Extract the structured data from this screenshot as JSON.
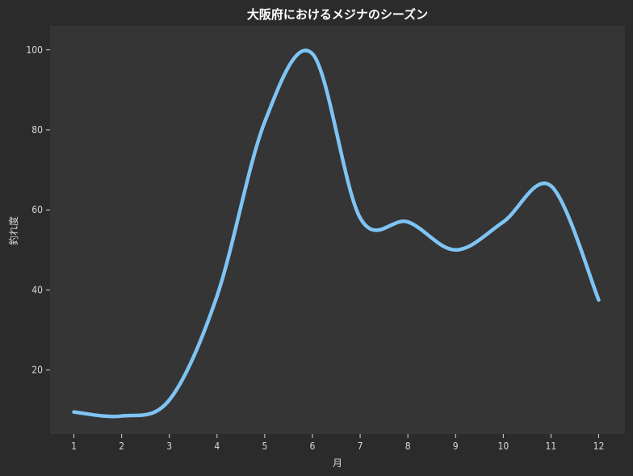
{
  "chart_data": {
    "type": "line",
    "title": "大阪府におけるメジナのシーズン",
    "xlabel": "月",
    "ylabel": "釣れ度",
    "x": [
      1,
      2,
      3,
      4,
      5,
      6,
      7,
      8,
      9,
      10,
      11,
      12
    ],
    "series": [
      {
        "values": [
          9.5,
          8.5,
          12.5,
          38.5,
          82,
          99,
          58,
          57,
          50,
          57,
          66,
          37.5
        ],
        "color": "#7ec4f4"
      }
    ],
    "xticks": [
      "1",
      "2",
      "3",
      "4",
      "5",
      "6",
      "7",
      "8",
      "9",
      "10",
      "11",
      "12"
    ],
    "yticks": [
      "20",
      "40",
      "60",
      "80",
      "100"
    ],
    "xlim": [
      0.5,
      12.55
    ],
    "ylim": [
      4,
      106
    ],
    "grid": false,
    "colors": {
      "figure_bg": "#2b2b2b",
      "plot_bg": "#353535",
      "text": "#d6d6d6"
    }
  }
}
